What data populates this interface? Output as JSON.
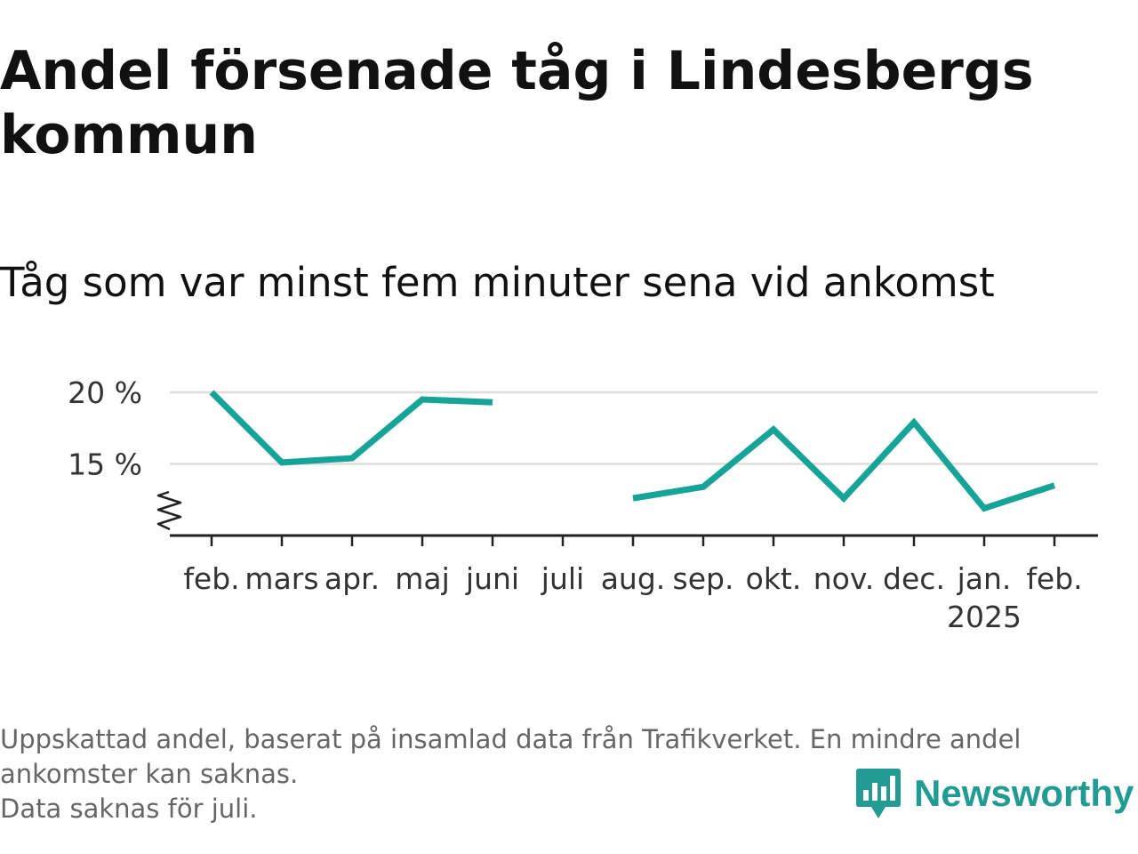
{
  "title": "Andel försenade tåg i Lindesbergs kommun",
  "subtitle": "Tåg som var minst fem minuter sena vid ankomst",
  "chart_data": {
    "type": "line",
    "x": [
      "feb.",
      "mars",
      "apr.",
      "maj",
      "juni",
      "juli",
      "aug.",
      "sep.",
      "okt.",
      "nov.",
      "dec.",
      "jan.",
      "feb."
    ],
    "x_sublabels": [
      "",
      "",
      "",
      "",
      "",
      "",
      "",
      "",
      "",
      "",
      "",
      "2025",
      ""
    ],
    "series": [
      {
        "values": [
          20.0,
          15.1,
          15.4,
          19.5,
          19.3,
          null,
          12.6,
          13.4,
          17.4,
          12.6,
          17.9,
          11.9,
          13.5
        ]
      }
    ],
    "yticks": [
      15,
      20
    ],
    "ytick_labels": [
      "15 %",
      "20 %"
    ],
    "ylim": [
      10,
      20
    ],
    "axis_break": true,
    "grid": true,
    "color": "#16a398",
    "title": "Andel försenade tåg i Lindesbergs kommun",
    "subtitle": "Tåg som var minst fem minuter sena vid ankomst",
    "xlabel": "",
    "ylabel": ""
  },
  "footnote": {
    "line1": "Uppskattad andel, baserat på insamlad data från Trafikverket. En mindre andel ankomster kan saknas.",
    "line2": "Data saknas för juli."
  },
  "brand": {
    "name": "Newsworthy",
    "icon": "newsworthy-logo-icon",
    "color": "#229b93"
  }
}
